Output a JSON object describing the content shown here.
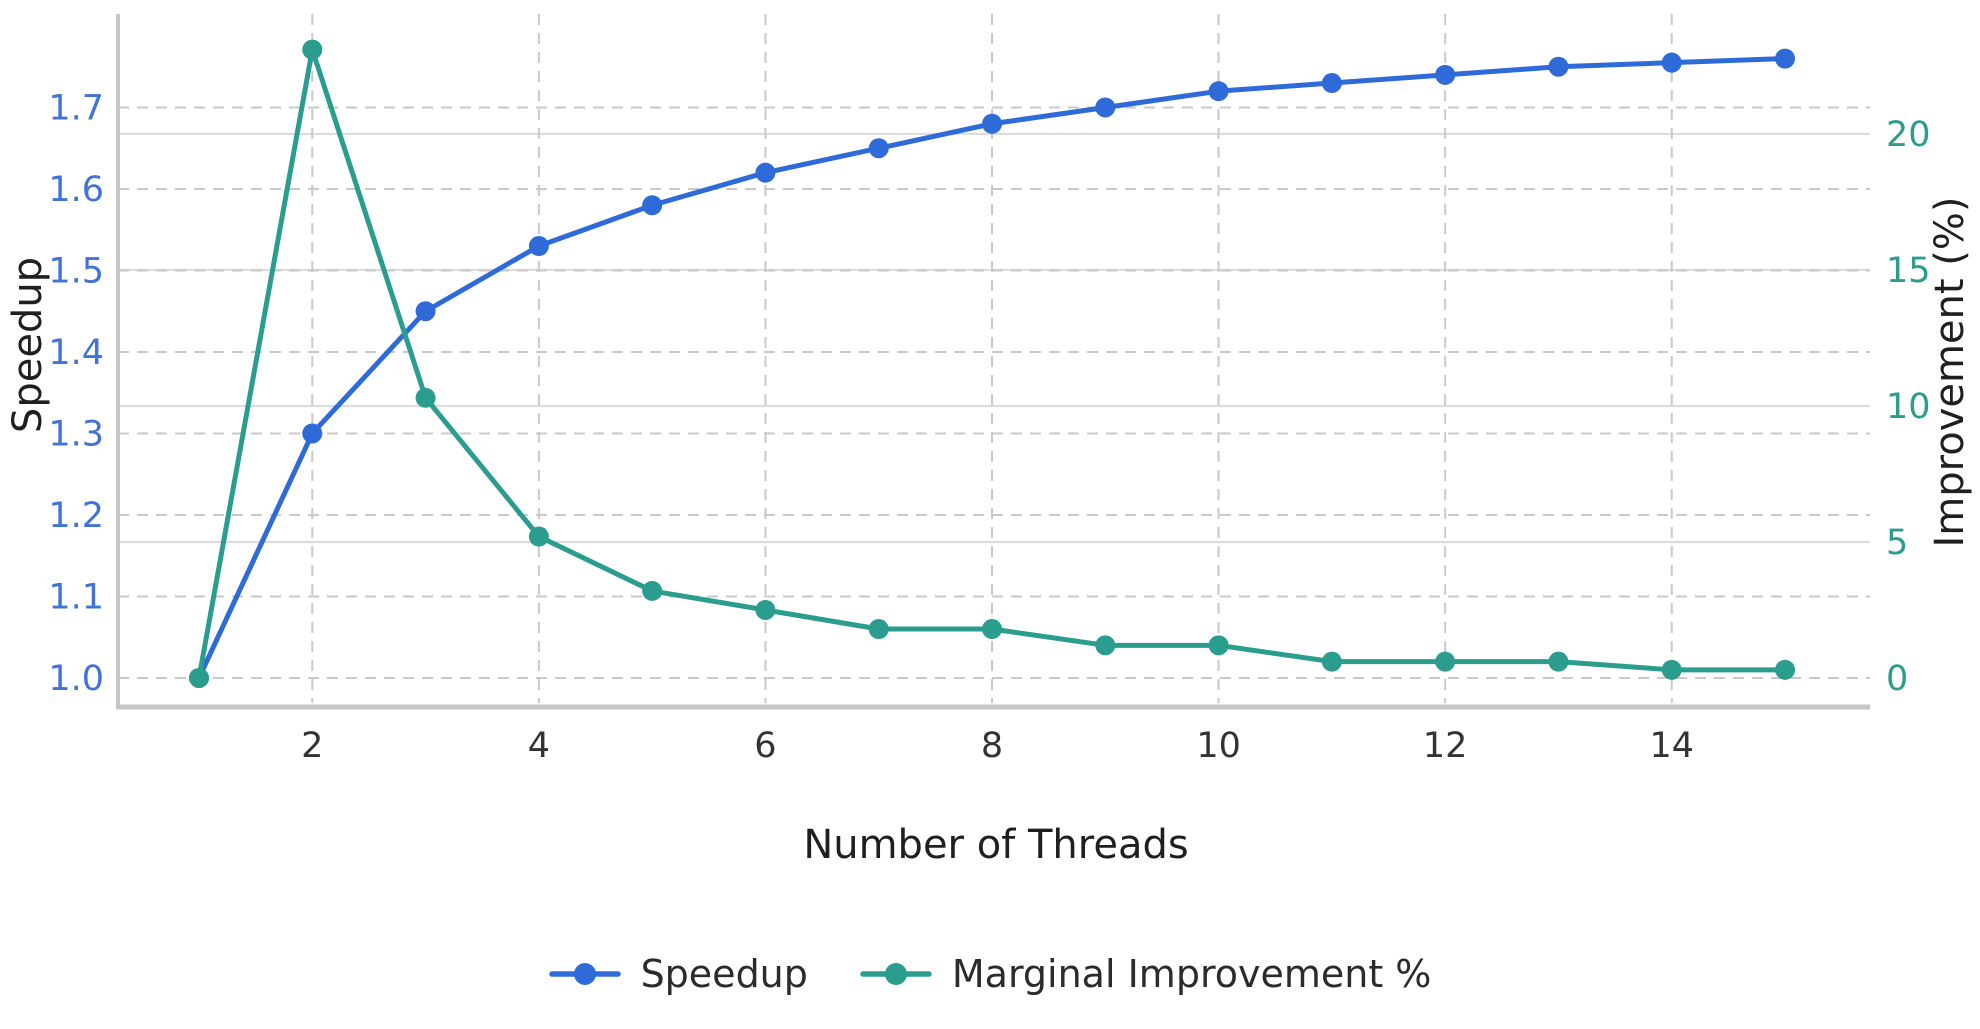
{
  "chart_data": {
    "type": "line",
    "title": "",
    "xlabel": "Number of Threads",
    "ylabel_left": "Speedup",
    "ylabel_right": "Improvement (%)",
    "x": [
      1,
      2,
      3,
      4,
      5,
      6,
      7,
      8,
      9,
      10,
      11,
      12,
      13,
      14,
      15
    ],
    "series": [
      {
        "name": "Speedup",
        "axis": "left",
        "color": "#2e6bd8",
        "marker": "circle",
        "values": [
          1.0,
          1.3,
          1.45,
          1.53,
          1.58,
          1.62,
          1.65,
          1.68,
          1.7,
          1.72,
          1.73,
          1.74,
          1.75,
          1.755,
          1.76
        ]
      },
      {
        "name": "Marginal Improvement %",
        "axis": "right",
        "color": "#2a9d8f",
        "marker": "circle",
        "values": [
          0.0,
          23.1,
          10.3,
          5.2,
          3.2,
          2.5,
          1.8,
          1.8,
          1.2,
          1.2,
          0.6,
          0.6,
          0.6,
          0.3,
          0.3
        ]
      }
    ],
    "x_ticks": [
      2,
      4,
      6,
      8,
      10,
      12,
      14
    ],
    "y_left_ticks": [
      "1.0",
      "1.1",
      "1.2",
      "1.3",
      "1.4",
      "1.5",
      "1.6",
      "1.7"
    ],
    "y_right_ticks": [
      "0",
      "5",
      "10",
      "15",
      "20"
    ],
    "xlim": [
      0.285,
      15.75
    ],
    "ylim_left": [
      0.9693,
      1.8147
    ],
    "ylim_right": [
      -0.92,
      24.41
    ],
    "grid": {
      "horizontal_dashed": "left-axis ticks",
      "horizontal_solid": "right-axis ticks 5-20",
      "vertical_dashed": "even x ticks"
    },
    "legend_position": "bottom center",
    "tick_colors": {
      "x": "#333333",
      "left": "#4173d7",
      "right": "#2a9d8f"
    },
    "style": {
      "grid_dashed_color": "#c9c9c9",
      "grid_solid_color": "#dcdcdc",
      "spine_color": "#c6c6c6",
      "line_width": 5,
      "marker_radius": 10
    }
  },
  "legend": {
    "items": [
      {
        "label": "Speedup",
        "color": "#2e6bd8"
      },
      {
        "label": "Marginal Improvement %",
        "color": "#2a9d8f"
      }
    ]
  }
}
